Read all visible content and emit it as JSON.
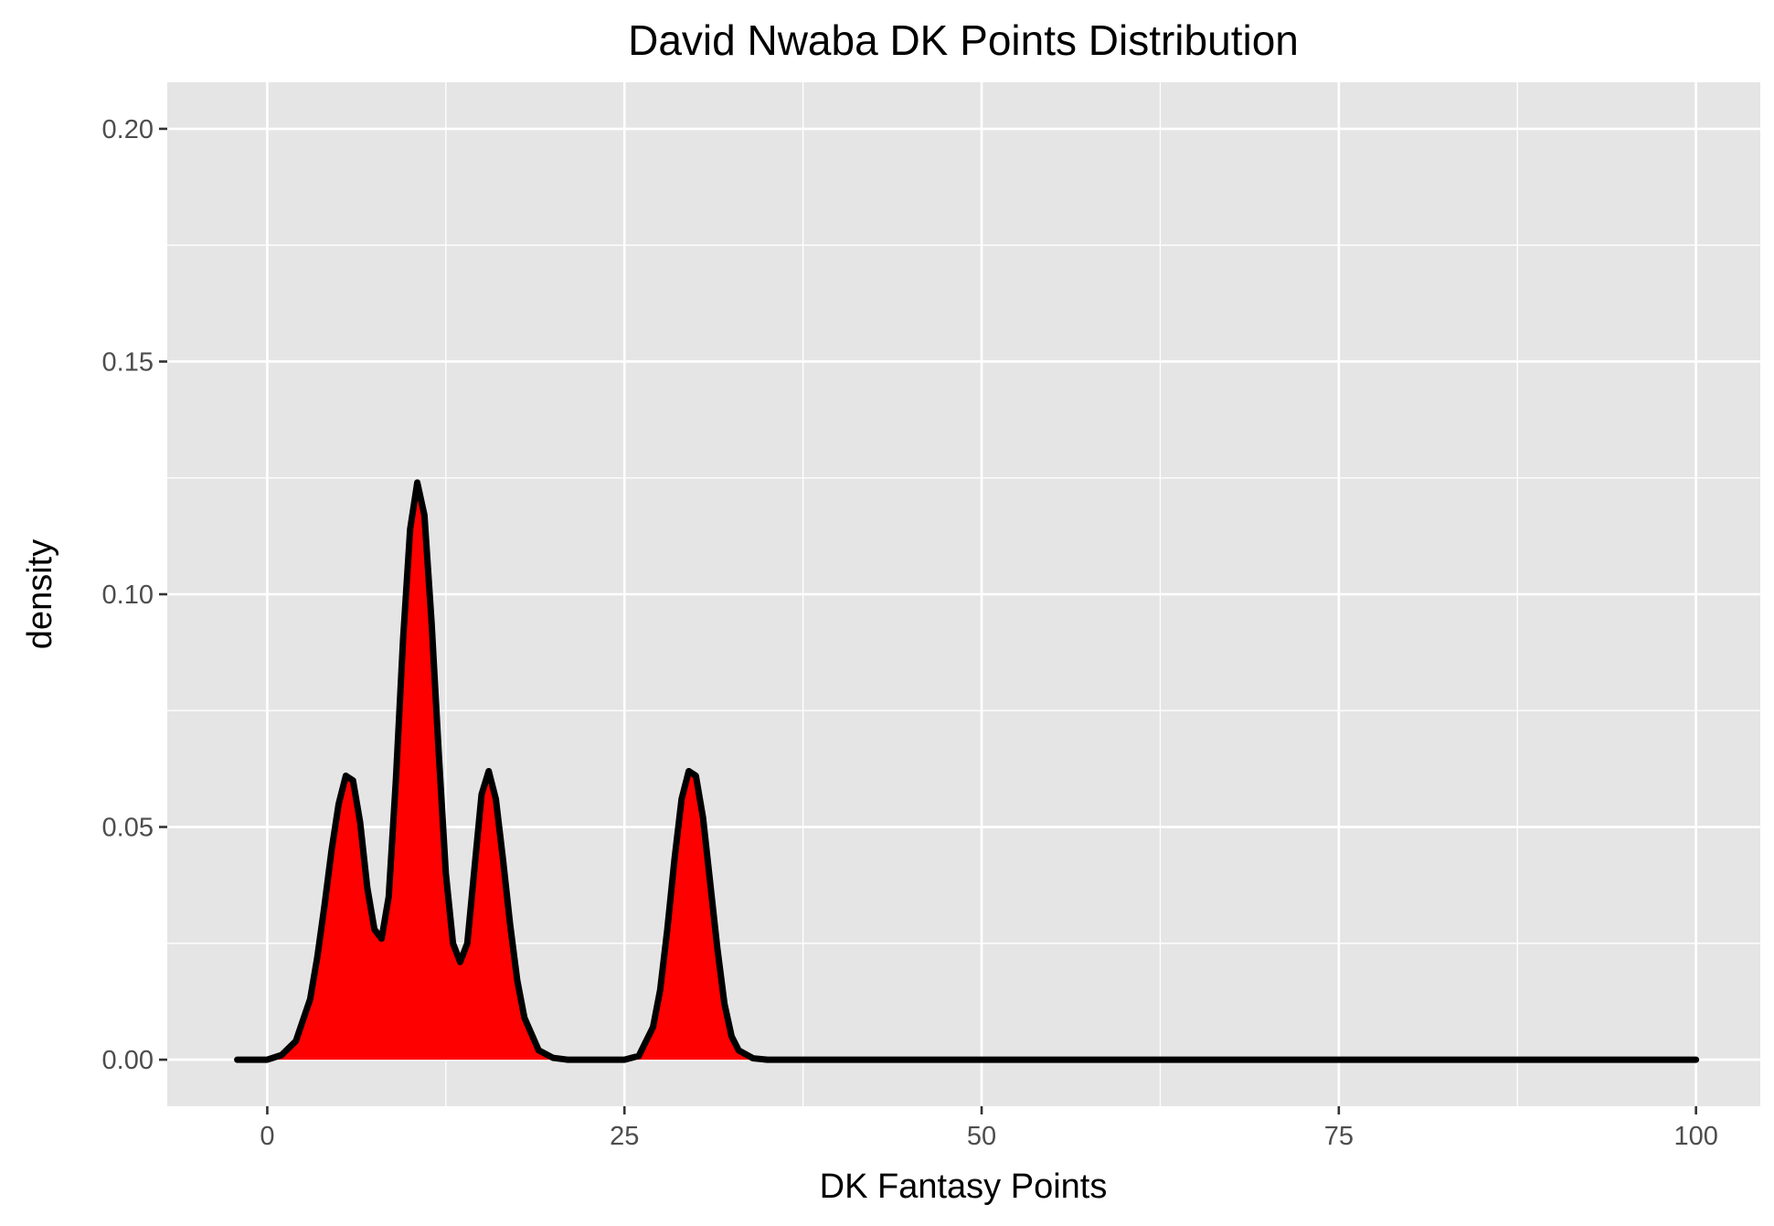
{
  "chart_data": {
    "type": "area",
    "title": "David Nwaba DK Points Distribution",
    "xlabel": "DK Fantasy Points",
    "ylabel": "density",
    "xlim": [
      -7,
      104.5
    ],
    "ylim": [
      -0.01,
      0.21
    ],
    "x_ticks": [
      0,
      25,
      50,
      75,
      100
    ],
    "x_tick_labels": [
      "0",
      "25",
      "50",
      "75",
      "100"
    ],
    "y_ticks": [
      0,
      0.05,
      0.1,
      0.15,
      0.2
    ],
    "y_tick_labels": [
      "0.00",
      "0.05",
      "0.10",
      "0.15",
      "0.20"
    ],
    "grid": true,
    "background_color": "#e5e5e5",
    "fill_color": "#ff0000",
    "line_color": "#000000",
    "density_range": [
      -2.1,
      100
    ],
    "series": [
      {
        "x": [
          -2.1,
          0,
          1,
          2,
          3,
          3.5,
          4,
          4.5,
          5,
          5.5,
          6,
          6.5,
          7,
          7.5,
          8,
          8.5,
          9,
          9.5,
          10,
          10.5,
          11,
          11.5,
          12,
          12.5,
          13,
          13.5,
          14,
          14.5,
          15,
          15.5,
          16,
          16.5,
          17,
          17.5,
          18,
          19,
          20,
          21,
          22,
          25,
          26,
          27,
          27.5,
          28,
          28.5,
          29,
          29.5,
          30,
          30.5,
          31,
          31.5,
          32,
          32.5,
          33,
          34,
          35,
          36,
          40,
          50,
          60,
          70,
          80,
          90,
          100
        ],
        "y": [
          0,
          0,
          0.001,
          0.004,
          0.013,
          0.022,
          0.033,
          0.045,
          0.055,
          0.061,
          0.06,
          0.051,
          0.037,
          0.028,
          0.026,
          0.035,
          0.06,
          0.09,
          0.114,
          0.124,
          0.117,
          0.094,
          0.066,
          0.04,
          0.025,
          0.021,
          0.025,
          0.041,
          0.057,
          0.062,
          0.056,
          0.043,
          0.029,
          0.017,
          0.009,
          0.002,
          0.0004,
          0,
          0,
          0,
          0.0008,
          0.007,
          0.015,
          0.028,
          0.043,
          0.056,
          0.062,
          0.061,
          0.052,
          0.038,
          0.024,
          0.012,
          0.005,
          0.002,
          0.0003,
          0,
          0,
          0,
          0,
          0,
          0,
          0,
          0,
          0
        ]
      }
    ]
  }
}
